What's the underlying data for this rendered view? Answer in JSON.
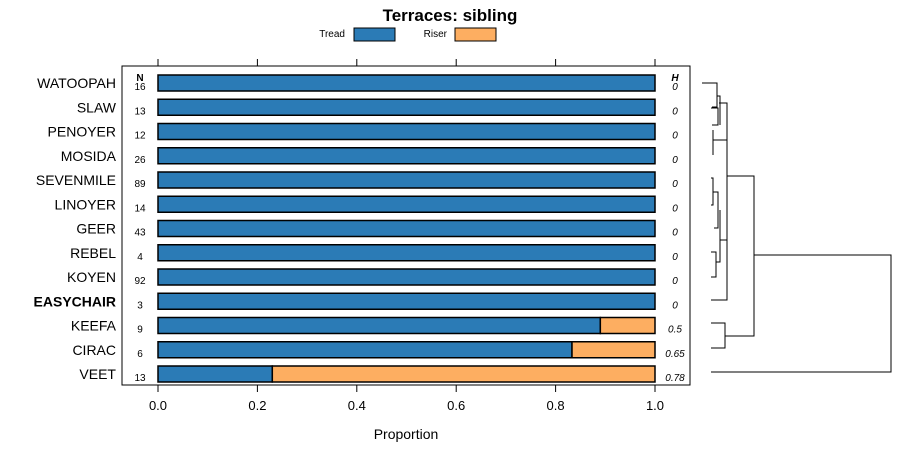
{
  "chart_data": {
    "type": "bar",
    "orientation": "horizontal",
    "stacked": true,
    "title": "Terraces: sibling",
    "xlabel": "Proportion",
    "ylabel": "",
    "xlim": [
      0,
      1
    ],
    "xticks": [
      "0.0",
      "0.2",
      "0.4",
      "0.6",
      "0.8",
      "1.0"
    ],
    "xtick_values": [
      0,
      0.2,
      0.4,
      0.6,
      0.8,
      1.0
    ],
    "n_header": "N",
    "h_header": "H",
    "highlighted_category": "EASYCHAIR",
    "categories": [
      "WATOOPAH",
      "SLAW",
      "PENOYER",
      "MOSIDA",
      "SEVENMILE",
      "LINOYER",
      "GEER",
      "REBEL",
      "KOYEN",
      "EASYCHAIR",
      "KEEFA",
      "CIRAC",
      "VEET"
    ],
    "n": [
      "16",
      "13",
      "12",
      "26",
      "89",
      "14",
      "43",
      "4",
      "92",
      "3",
      "9",
      "6",
      "13"
    ],
    "h": [
      "0",
      "0",
      "0",
      "0",
      "0",
      "0",
      "0",
      "0",
      "0",
      "0",
      "0.5",
      "0.65",
      "0.78"
    ],
    "series": [
      {
        "name": "Tread",
        "color": "#2B7BB6",
        "values": [
          1,
          1,
          1,
          1,
          1,
          1,
          1,
          1,
          1,
          1,
          0.89,
          0.833,
          0.23
        ]
      },
      {
        "name": "Riser",
        "color": "#FDAE61",
        "values": [
          0,
          0,
          0,
          0,
          0,
          0,
          0,
          0,
          0,
          0,
          0.11,
          0.167,
          0.77
        ]
      }
    ],
    "legend_position": "top"
  }
}
